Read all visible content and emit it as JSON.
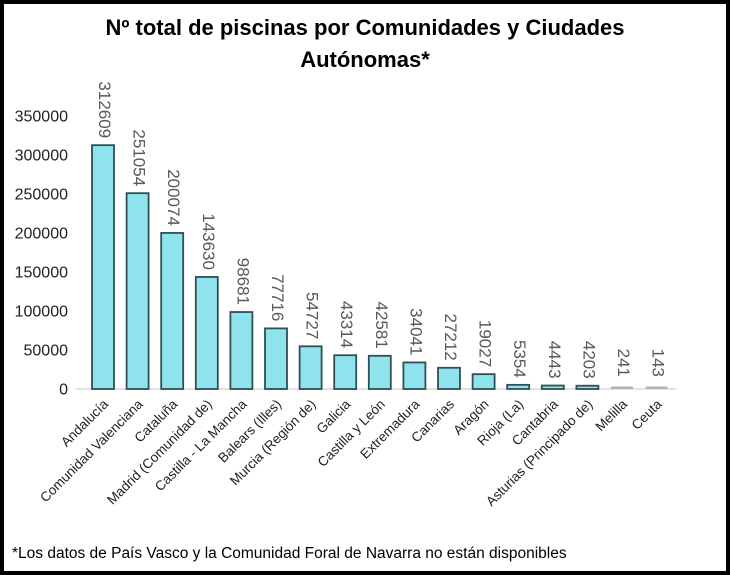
{
  "header": {
    "title_line1": "Nº total de piscinas por Comunidades y Ciudades",
    "title_line2": "Autónomas*"
  },
  "footnote": {
    "text": "*Los datos de País Vasco y la Comunidad Foral de Navarra no están disponibles"
  },
  "chart_data": {
    "type": "bar",
    "title": "Nº total de piscinas por Comunidades y Ciudades Autónomas*",
    "categories": [
      "Andalucía",
      "Comunidad Valenciana",
      "Cataluña",
      "Madrid (Comunidad de)",
      "Castilla - La Mancha",
      "Balears (Illes)",
      "Murcia (Región de)",
      "Galicia",
      "Castilla y León",
      "Extremadura",
      "Canarias",
      "Aragón",
      "Rioja (La)",
      "Cantabria",
      "Asturias (Principado de)",
      "Melilla",
      "Ceuta"
    ],
    "values": [
      312609,
      251054,
      200074,
      143630,
      98681,
      77716,
      54727,
      43314,
      42581,
      34041,
      27212,
      19027,
      5354,
      4443,
      4203,
      241,
      143
    ],
    "xlabel": "",
    "ylabel": "",
    "ylim": [
      0,
      350000
    ],
    "ytick_step": 50000,
    "yticks": [
      0,
      50000,
      100000,
      150000,
      200000,
      250000,
      300000,
      350000
    ],
    "grid": false,
    "legend": false,
    "data_labels_rotated_90": true,
    "category_labels_rotated_45": true,
    "colors": {
      "bar_fill": "#8EE3EC",
      "bar_stroke": "#2F4F55",
      "tiny_bar_mark": "#B3B3B3",
      "baseline": "#D9D9D9",
      "axis_label": "#1F1F1F",
      "data_label": "#595959",
      "title": "#000000",
      "frame_border": "#000000",
      "background": "#FFFFFF"
    }
  }
}
